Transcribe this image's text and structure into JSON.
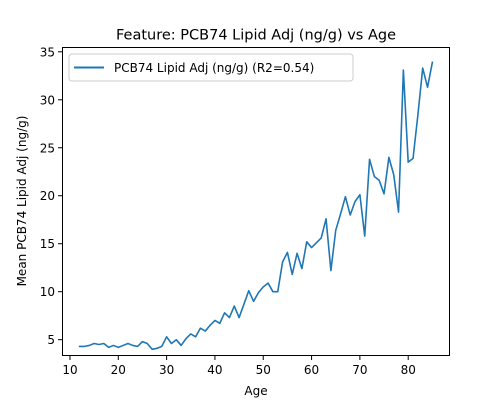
{
  "chart_data": {
    "type": "line",
    "title": "Feature: PCB74 Lipid Adj (ng/g) vs Age",
    "xlabel": "Age",
    "ylabel": "Mean PCB74 Lipid Adj (ng/g)",
    "xlim": [
      8.35,
      88.65
    ],
    "ylim": [
      3.3,
      35.5
    ],
    "xticks": [
      10,
      20,
      30,
      40,
      50,
      60,
      70,
      80
    ],
    "yticks": [
      5,
      10,
      15,
      20,
      25,
      30,
      35
    ],
    "grid": false,
    "legend_position": "upper left",
    "series": [
      {
        "name": "PCB74 Lipid Adj (ng/g) (R2=0.54)",
        "color": "#1f77b4",
        "x": [
          12,
          13,
          14,
          15,
          16,
          17,
          18,
          19,
          20,
          21,
          22,
          23,
          24,
          25,
          26,
          27,
          28,
          29,
          30,
          31,
          32,
          33,
          34,
          35,
          36,
          37,
          38,
          39,
          40,
          41,
          42,
          43,
          44,
          45,
          46,
          47,
          48,
          49,
          50,
          51,
          52,
          53,
          54,
          55,
          56,
          57,
          58,
          59,
          60,
          61,
          62,
          63,
          64,
          65,
          66,
          67,
          68,
          69,
          70,
          71,
          72,
          73,
          74,
          75,
          76,
          77,
          78,
          79,
          80,
          81,
          82,
          83,
          84,
          85
        ],
        "y": [
          4.3,
          4.3,
          4.4,
          4.6,
          4.5,
          4.6,
          4.2,
          4.4,
          4.2,
          4.4,
          4.6,
          4.4,
          4.3,
          4.8,
          4.6,
          4.0,
          4.1,
          4.3,
          5.3,
          4.6,
          5.0,
          4.4,
          5.1,
          5.6,
          5.3,
          6.2,
          5.9,
          6.5,
          7.0,
          6.7,
          7.8,
          7.3,
          8.5,
          7.3,
          8.7,
          10.1,
          9.0,
          9.9,
          10.5,
          10.9,
          10.0,
          10.0,
          13.1,
          14.1,
          11.8,
          14.0,
          12.4,
          15.2,
          14.6,
          15.1,
          15.6,
          17.6,
          12.2,
          16.4,
          18.1,
          19.9,
          18.0,
          19.4,
          20.1,
          15.8,
          23.8,
          22.0,
          21.6,
          20.2,
          24.0,
          22.2,
          18.3,
          33.1,
          23.5,
          23.9,
          28.4,
          33.3,
          31.3,
          33.9
        ]
      }
    ]
  }
}
